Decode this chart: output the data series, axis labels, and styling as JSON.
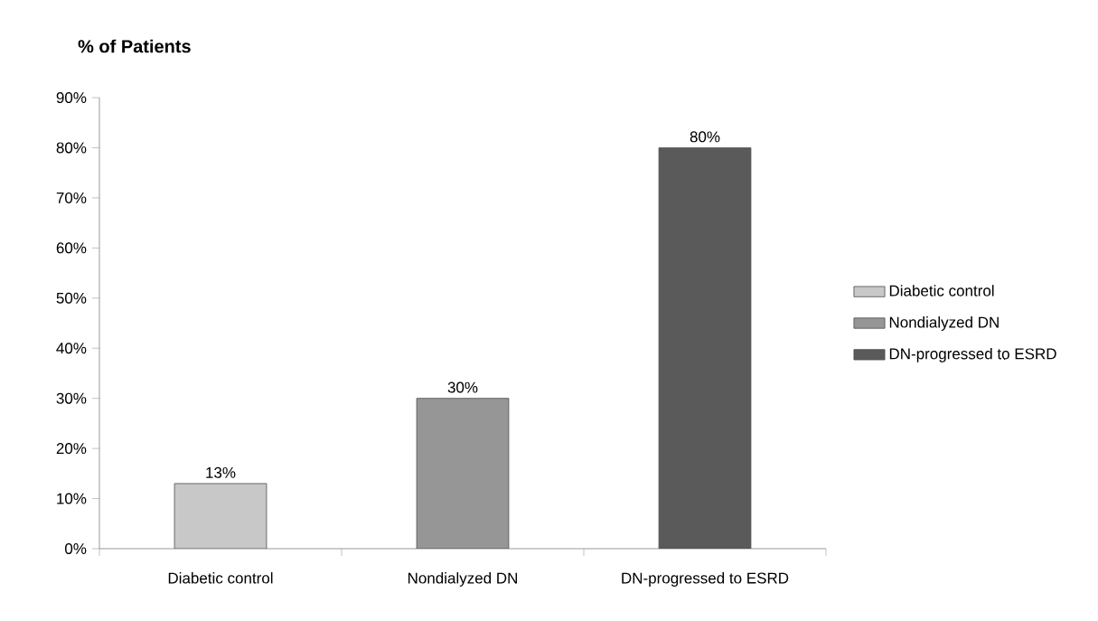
{
  "chart_data": {
    "type": "bar",
    "ylabel": "% of Patients",
    "categories": [
      "Diabetic control",
      "Nondialyzed DN",
      "DN-progressed to ESRD"
    ],
    "series": [
      {
        "name": "Diabetic control",
        "color": "#c8c8c8",
        "values": [
          13,
          null,
          null
        ],
        "value_labels": [
          "13%",
          null,
          null
        ]
      },
      {
        "name": "Nondialyzed DN",
        "color": "#969696",
        "values": [
          null,
          30,
          null
        ],
        "value_labels": [
          null,
          "30%",
          null
        ]
      },
      {
        "name": "DN-progressed to ESRD",
        "color": "#5a5a5a",
        "values": [
          null,
          null,
          80
        ],
        "value_labels": [
          null,
          null,
          "80%"
        ]
      }
    ],
    "ylim": [
      0,
      90
    ],
    "yticks": [
      {
        "value": 0,
        "label": "0%"
      },
      {
        "value": 10,
        "label": "10%"
      },
      {
        "value": 20,
        "label": "20%"
      },
      {
        "value": 30,
        "label": "30%"
      },
      {
        "value": 40,
        "label": "40%"
      },
      {
        "value": 50,
        "label": "50%"
      },
      {
        "value": 60,
        "label": "60%"
      },
      {
        "value": 70,
        "label": "70%"
      },
      {
        "value": 80,
        "label": "80%"
      },
      {
        "value": 90,
        "label": "90%"
      }
    ],
    "grid": false,
    "legend": "right"
  }
}
